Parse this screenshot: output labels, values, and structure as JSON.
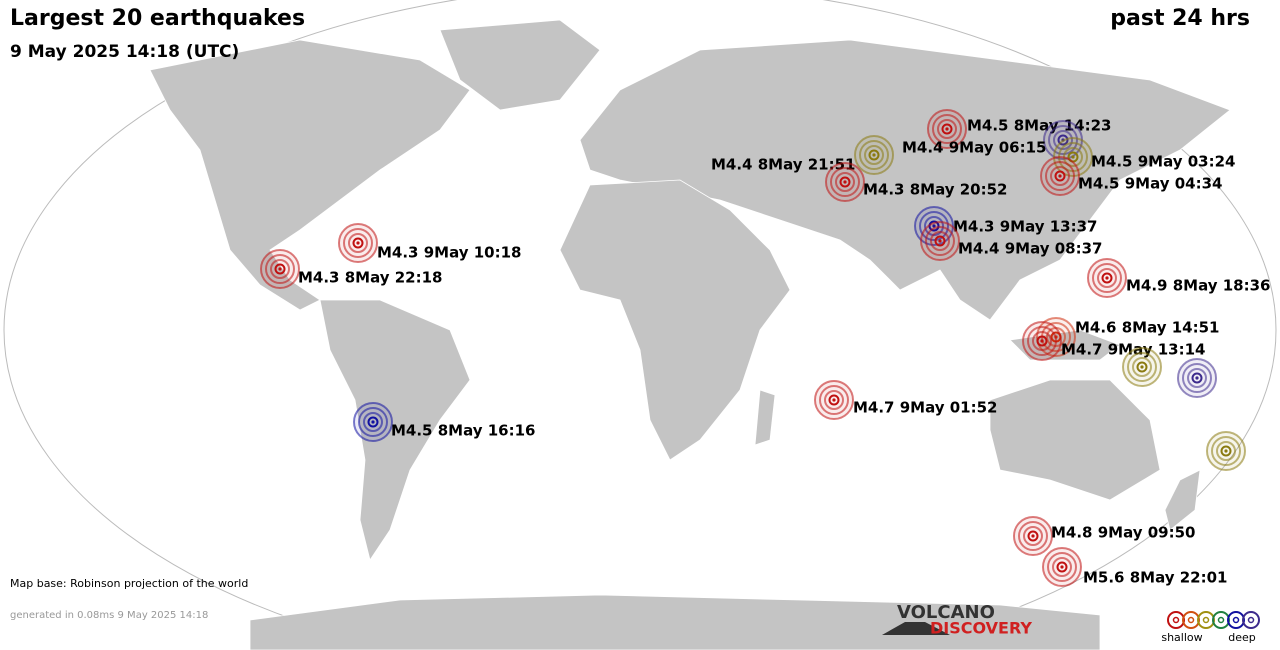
{
  "header": {
    "title": "Largest 20 earthquakes",
    "subtitle": "9 May 2025 14:18 (UTC)",
    "period": "past 24 hrs"
  },
  "quakes": [
    {
      "label": "M4.5  8May 14:23",
      "color": "#c01010"
    },
    {
      "label": "M4.4  9May 06:15",
      "color": "#3c2a8c"
    },
    {
      "label": "M4.4  8May 21:51",
      "color": "#8a7a10"
    },
    {
      "label": "M4.3  8May 20:52",
      "color": "#c01010"
    },
    {
      "label": "M4.5  9May 03:24",
      "color": "#8a7a10"
    },
    {
      "label": "M4.5  9May 04:34",
      "color": "#c01010"
    },
    {
      "label": "M4.3  9May 13:37",
      "color": "#1010a0"
    },
    {
      "label": "M4.4  9May 08:37",
      "color": "#c01010"
    },
    {
      "label": "M4.9  8May 18:36",
      "color": "#c01010"
    },
    {
      "label": "M4.3  9May 10:18",
      "color": "#c01010"
    },
    {
      "label": "M4.3  8May 22:18",
      "color": "#c01010"
    },
    {
      "label": "M4.6  8May 14:51",
      "color": "#d03010"
    },
    {
      "label": "M4.7  9May 13:14",
      "color": "#c01010"
    },
    {
      "label": null,
      "color": "#8a7a10"
    },
    {
      "label": null,
      "color": "#3c2a8c"
    },
    {
      "label": null,
      "color": "#8a7a10"
    },
    {
      "label": "M4.7  9May 01:52",
      "color": "#c01010"
    },
    {
      "label": "M4.5  8May 16:16",
      "color": "#1010a0"
    },
    {
      "label": "M4.8  9May 09:50",
      "color": "#c01010"
    },
    {
      "label": "M5.6  8May 22:01",
      "color": "#c01010"
    }
  ],
  "footer": {
    "map_base": "Map base: Robinson projection of the world",
    "generated": "generated in 0.08ms  9 May 2025 14:18"
  },
  "logo": {
    "line1": "VOLCANO",
    "line2": "DISCOVERY"
  },
  "legend": {
    "shallow": "shallow",
    "deep": "deep",
    "colors": [
      "#c01010",
      "#d05010",
      "#a09010",
      "#208040",
      "#1010a0",
      "#3c2a8c"
    ]
  }
}
